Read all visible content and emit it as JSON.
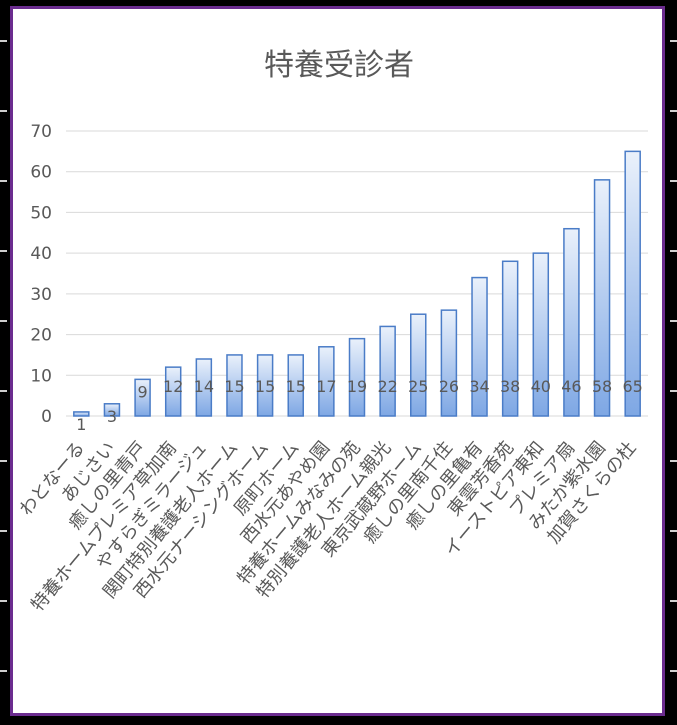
{
  "colors": {
    "frame": "#000000",
    "panel_border": "#6b2c8f",
    "bar_top": "#eaf1fb",
    "bar_bottom": "#7ea7e4",
    "bar_stroke": "#4a7cc7",
    "grid": "#d9d9d9",
    "text": "#595959"
  },
  "chart_data": {
    "type": "bar",
    "title": "特養受診者",
    "xlabel": "",
    "ylabel": "",
    "ylim": [
      0,
      70
    ],
    "yticks": [
      0,
      10,
      20,
      30,
      40,
      50,
      60,
      70
    ],
    "grid": true,
    "legend": "none",
    "categories": [
      "わとなーる",
      "あじさい",
      "癒しの里青戸",
      "特養ホームプレミア草加南",
      "やすらぎミラージュ",
      "関町特別養護老人ホーム",
      "西水元ナーシングホーム",
      "原町ホーム",
      "西水元あやめ園",
      "特養ホームみなみの苑",
      "特別養護老人ホーム親光",
      "東京武蔵野ホーム",
      "癒しの里南千住",
      "癒しの里亀有",
      "東雲芳香苑",
      "イーストピア東和",
      "プレミア扇",
      "みたか紫水園",
      "加賀さくらの杜"
    ],
    "values": [
      1,
      3,
      9,
      12,
      14,
      15,
      15,
      15,
      17,
      19,
      22,
      25,
      26,
      34,
      38,
      40,
      46,
      58,
      65
    ]
  }
}
